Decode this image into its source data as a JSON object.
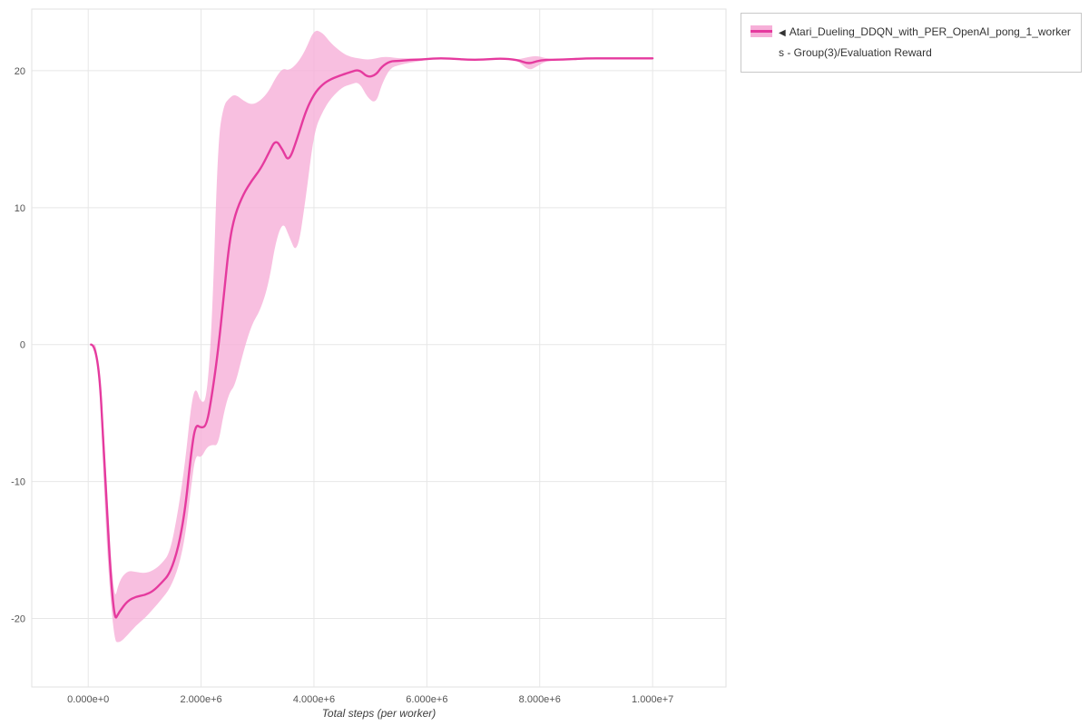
{
  "page": {
    "background": "#ffffff"
  },
  "chart_data": {
    "type": "line",
    "title": "",
    "xlabel": "Total steps (per worker)",
    "ylabel": "",
    "grid": true,
    "legend_position": "top-right-outside",
    "x_ticks": [
      0,
      2000000,
      4000000,
      6000000,
      8000000,
      10000000
    ],
    "x_tick_labels": [
      "0.000e+0",
      "2.000e+6",
      "4.000e+6",
      "6.000e+6",
      "8.000e+6",
      "1.000e+7"
    ],
    "y_ticks": [
      -20,
      -10,
      0,
      10,
      20
    ],
    "xlim": [
      -1000000,
      11300000
    ],
    "ylim": [
      -25,
      24.5
    ],
    "series": [
      {
        "name": "Atari_Dueling_DDQN_with_PER_OpenAI_pong_1_workers - Group(3)/Evaluation Reward",
        "color": "#e53a9e",
        "band_color": "#f6afd8",
        "x": [
          50000,
          180000,
          300000,
          450000,
          550000,
          700000,
          850000,
          1000000,
          1150000,
          1300000,
          1450000,
          1600000,
          1720000,
          1820000,
          1900000,
          2000000,
          2100000,
          2200000,
          2300000,
          2400000,
          2500000,
          2600000,
          2750000,
          2900000,
          3050000,
          3200000,
          3320000,
          3450000,
          3550000,
          3700000,
          3850000,
          4000000,
          4150000,
          4300000,
          4500000,
          4650000,
          4800000,
          4950000,
          5100000,
          5200000,
          5350000,
          5500000,
          5700000,
          5900000,
          6100000,
          6400000,
          6700000,
          7000000,
          7300000,
          7600000,
          7800000,
          7950000,
          8100000,
          8400000,
          8800000,
          9200000,
          9600000,
          10000000
        ],
        "y": [
          0,
          0,
          -10,
          -20.3,
          -19.5,
          -18.7,
          -18.4,
          -18.3,
          -18.0,
          -17.4,
          -16.7,
          -14.8,
          -12.0,
          -8.0,
          -5.8,
          -6.1,
          -5.9,
          -3.5,
          -0.5,
          3.5,
          7.5,
          9.5,
          11.0,
          12.0,
          12.8,
          14.0,
          15.0,
          14.2,
          13.3,
          15.0,
          17.0,
          18.3,
          19.0,
          19.4,
          19.7,
          19.9,
          20.1,
          19.5,
          19.7,
          20.3,
          20.7,
          20.7,
          20.8,
          20.8,
          20.9,
          20.9,
          20.8,
          20.8,
          20.9,
          20.8,
          20.5,
          20.7,
          20.8,
          20.8,
          20.9,
          20.9,
          20.9,
          20.9
        ],
        "y_lower": [
          0,
          0,
          -13,
          -21.6,
          -21.8,
          -21.2,
          -20.5,
          -20.0,
          -19.3,
          -18.6,
          -17.8,
          -16.3,
          -14.0,
          -10.5,
          -8.0,
          -8.3,
          -7.5,
          -7.3,
          -7.4,
          -5.0,
          -3.5,
          -3.0,
          -0.5,
          1.5,
          2.5,
          4.5,
          7.5,
          9.0,
          8.0,
          6.5,
          10.5,
          15.5,
          17.0,
          18.0,
          18.8,
          19.0,
          19.2,
          18.0,
          17.6,
          19.0,
          20.2,
          20.4,
          20.6,
          20.7,
          20.9,
          20.9,
          20.8,
          20.8,
          20.9,
          20.8,
          20.0,
          20.3,
          20.7,
          20.8,
          20.9,
          20.9,
          20.9,
          20.9
        ],
        "y_upper": [
          0,
          0,
          -8,
          -19.0,
          -17.2,
          -16.5,
          -16.6,
          -16.7,
          -16.5,
          -16.0,
          -15.2,
          -12.0,
          -8.5,
          -4.5,
          -3.0,
          -4.3,
          -4.0,
          2.0,
          15.0,
          17.5,
          18.0,
          18.3,
          17.8,
          17.5,
          17.8,
          18.5,
          19.5,
          20.2,
          20.0,
          20.5,
          21.5,
          23.0,
          22.8,
          22.0,
          21.3,
          21.0,
          20.9,
          20.8,
          20.9,
          21.0,
          21.0,
          20.9,
          20.9,
          20.9,
          20.9,
          20.9,
          20.8,
          20.8,
          20.9,
          20.8,
          21.0,
          21.1,
          20.9,
          20.8,
          20.9,
          20.9,
          20.9,
          20.9
        ]
      }
    ]
  },
  "legend": {
    "collapse_arrow": "◀",
    "line1": "Atari_Dueling_DDQN_with_PER_OpenAI_pong_1_worker",
    "line2": "s - Group(3)/Evaluation Reward"
  },
  "colors": {
    "grid": "#e7e7e7",
    "plot_border": "#e2e2e2",
    "tick_text": "#545454",
    "axis_label": "#3d3d3d",
    "legend_border": "#c8c8c8"
  }
}
